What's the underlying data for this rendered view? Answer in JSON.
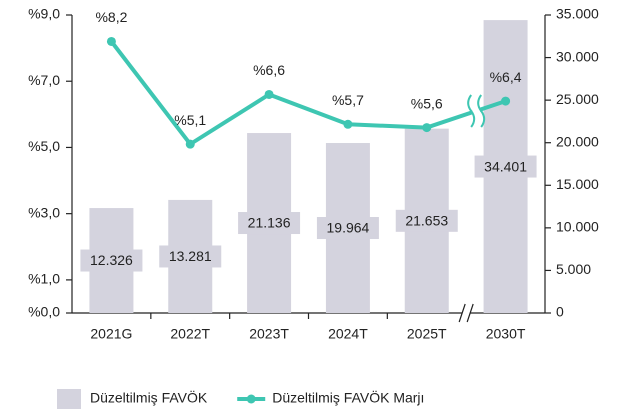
{
  "chart_data": {
    "type": "combo",
    "categories": [
      "2021G",
      "2022T",
      "2023T",
      "2024T",
      "2025T",
      "2030T"
    ],
    "series": [
      {
        "name": "Düzeltilmiş FAVÖK",
        "type": "bar",
        "axis": "y2",
        "color": "#d4d3de",
        "values": [
          12326,
          13281,
          21136,
          19964,
          21653,
          34401
        ],
        "value_labels": [
          "12.326",
          "13.281",
          "21.136",
          "19.964",
          "21.653",
          "34.401"
        ]
      },
      {
        "name": "Düzeltilmiş FAVÖK Marjı",
        "type": "line",
        "color": "#3ec6b2",
        "values": [
          8.2,
          5.1,
          6.6,
          5.7,
          5.6,
          6.4
        ],
        "value_labels": [
          "%8,2",
          "%5,1",
          "%6,6",
          "%5,7",
          "%5,6",
          "%6,4"
        ]
      }
    ],
    "ylim": [
      0,
      9
    ],
    "yticks": [
      {
        "value": 0,
        "label": "%0,0"
      },
      {
        "value": 1,
        "label": "%1,0"
      },
      {
        "value": 3,
        "label": "%3,0"
      },
      {
        "value": 5,
        "label": "%5,0"
      },
      {
        "value": 7,
        "label": "%7,0"
      },
      {
        "value": 9,
        "label": "%9,0"
      }
    ],
    "y2lim": [
      0,
      35000
    ],
    "y2ticks": [
      0,
      {
        "value": 5000,
        "label": "5.000"
      },
      {
        "value": 10000,
        "label": "10.000"
      },
      {
        "value": 15000,
        "label": "15.000"
      },
      {
        "value": 20000,
        "label": "20.000"
      },
      {
        "value": 25000,
        "label": "25.000"
      },
      {
        "value": 30000,
        "label": "30.000"
      },
      {
        "value": 35000,
        "label": "35.000"
      }
    ],
    "grid": false,
    "legend": "bottom"
  }
}
